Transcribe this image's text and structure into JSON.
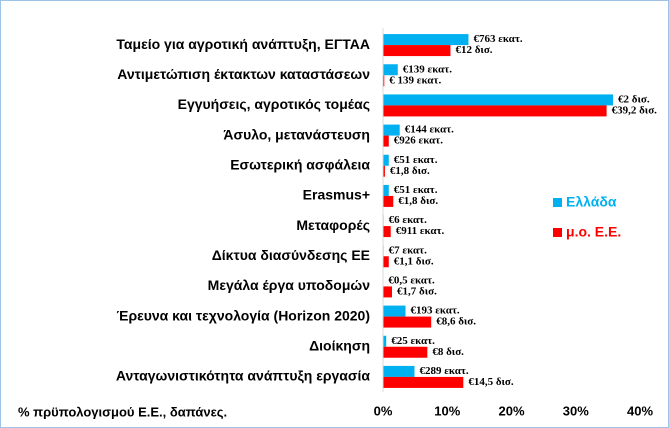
{
  "chart_data": {
    "type": "bar",
    "orientation": "horizontal",
    "categories": [
      "Ταμείο για αγροτική ανάπτυξη, ΕΓΤΑΑ",
      "Αντιμετώπιση έκτακτων καταστάσεων",
      "Εγγυήσεις, αγροτικός τομέας",
      "Άσυλο, μετανάστευση",
      "Εσωτερική ασφάλεια",
      "Erasmus+",
      "Μεταφορές",
      "Δίκτυα διασύνδεσης ΕΕ",
      "Μεγάλα έργα υποδομών",
      "Έρευνα και τεχνολογία (Horizon 2020)",
      "Διοίκηση",
      "Ανταγωνιστικότητα ανάπτυξη εργασία"
    ],
    "series": [
      {
        "name": "Ελλάδα",
        "color": "#00b0f0",
        "values": [
          13.3,
          2.3,
          35.8,
          2.6,
          0.9,
          0.9,
          0.1,
          0.1,
          0.05,
          3.5,
          0.5,
          4.9
        ],
        "labels": [
          "€763 εκατ.",
          "€139 εκατ.",
          "€2 δισ.",
          "€144 εκατ.",
          "€51 εκατ.",
          "€51 εκατ.",
          "€6 εκατ.",
          "€7 εκατ.",
          "€0,5 εκατ.",
          "€193 εκατ.",
          "€25 εκατ.",
          "€289 εκατ."
        ]
      },
      {
        "name": "μ.ο. Ε.Ε.",
        "color": "#ff0000",
        "values": [
          10.5,
          0.2,
          34.8,
          0.9,
          0.3,
          1.6,
          1.2,
          0.9,
          1.4,
          7.5,
          6.9,
          12.5
        ],
        "labels": [
          "€12 δισ.",
          "€ 139 εκατ.",
          "€39,2 δισ.",
          "€926 εκατ.",
          "€1,8 δισ.",
          "€1,8 δισ.",
          "€911 εκατ.",
          "€1,1 δισ.",
          "€1,7 δισ.",
          "€8,6 δισ.",
          "€8 δισ.",
          "€14,5 δισ."
        ]
      }
    ],
    "xlabel": "% πρϋπολογισμού Ε.Ε., δαπάνες.",
    "xlim": [
      0,
      40
    ],
    "xticks": [
      {
        "value": 0,
        "label": "0%"
      },
      {
        "value": 10,
        "label": "10%"
      },
      {
        "value": 20,
        "label": "20%"
      },
      {
        "value": 30,
        "label": "30%"
      },
      {
        "value": 40,
        "label": "40%"
      }
    ],
    "legend": "right"
  }
}
